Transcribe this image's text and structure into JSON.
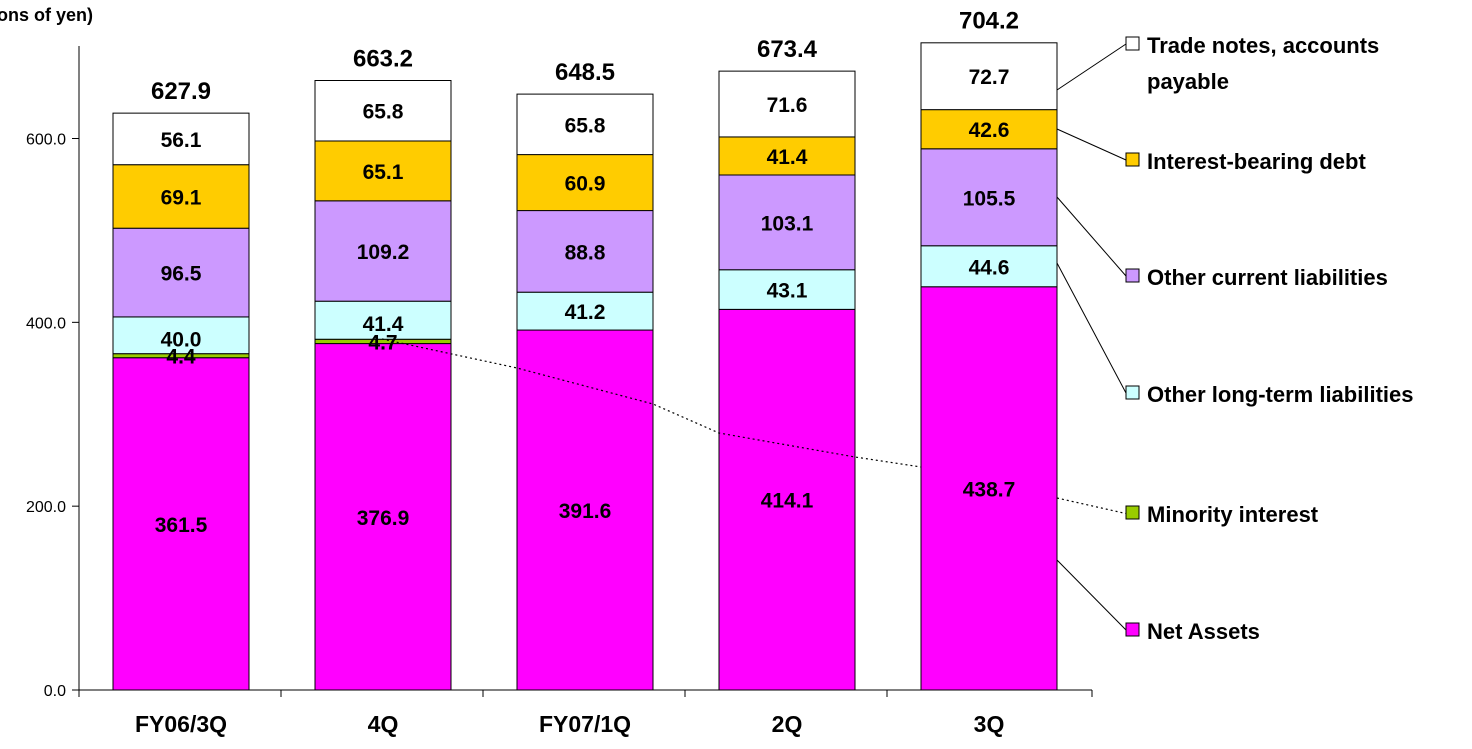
{
  "chart_data": {
    "type": "bar",
    "stacked": true,
    "title": "",
    "unit_label": "(Billions of yen)",
    "categories": [
      "FY06/3Q",
      "4Q",
      "FY07/1Q",
      "2Q",
      "3Q"
    ],
    "totals": [
      627.9,
      663.2,
      648.5,
      673.4,
      704.2
    ],
    "ylim": [
      0,
      700
    ],
    "yticks": [
      0,
      200,
      400,
      600
    ],
    "ytick_labels": [
      "0.0",
      "200.0",
      "400.0",
      "600.0"
    ],
    "grid": false,
    "legend_placement": "right",
    "series": [
      {
        "name": "Net Assets",
        "color": "#ff00ff",
        "values": [
          361.5,
          376.9,
          391.6,
          414.1,
          438.7
        ],
        "labels": [
          "361.5",
          "376.9",
          "391.6",
          "414.1",
          "438.7"
        ]
      },
      {
        "name": "Minority interest",
        "color": "#99cc00",
        "values": [
          4.4,
          4.7,
          0,
          0,
          0
        ],
        "labels": [
          "4.4",
          "4.7",
          "",
          "",
          ""
        ]
      },
      {
        "name": "Other long-term liabilities",
        "color": "#ccffff",
        "values": [
          40.0,
          41.4,
          41.2,
          43.1,
          44.6
        ],
        "labels": [
          "40.0",
          "41.4",
          "41.2",
          "43.1",
          "44.6"
        ]
      },
      {
        "name": "Other current liabilities",
        "color": "#cc99ff",
        "values": [
          96.5,
          109.2,
          88.8,
          103.1,
          105.5
        ],
        "labels": [
          "96.5",
          "109.2",
          "88.8",
          "103.1",
          "105.5"
        ]
      },
      {
        "name": "Interest-bearing debt",
        "color": "#ffcc00",
        "values": [
          69.1,
          65.1,
          60.9,
          41.4,
          42.6
        ],
        "labels": [
          "69.1",
          "65.1",
          "60.9",
          "41.4",
          "42.6"
        ]
      },
      {
        "name": "Trade notes, accounts payable",
        "color": "#ffffff",
        "values": [
          56.1,
          65.8,
          65.8,
          71.6,
          72.7
        ],
        "labels": [
          "56.1",
          "65.8",
          "65.8",
          "71.6",
          "72.7"
        ]
      }
    ],
    "legend": [
      {
        "lines": [
          "Trade notes, accounts",
          "payable"
        ],
        "color": "#ffffff"
      },
      {
        "lines": [
          "Interest-bearing debt"
        ],
        "color": "#ffcc00"
      },
      {
        "lines": [
          "Other current liabilities"
        ],
        "color": "#cc99ff"
      },
      {
        "lines": [
          "Other long-term liabilities"
        ],
        "color": "#ccffff"
      },
      {
        "lines": [
          "Minority interest"
        ],
        "color": "#99cc00"
      },
      {
        "lines": [
          "Net Assets"
        ],
        "color": "#ff00ff"
      }
    ]
  }
}
